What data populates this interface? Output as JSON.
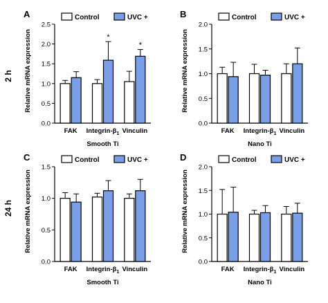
{
  "caption": "",
  "row_labels": [
    "2 h",
    "24 h"
  ],
  "chart_data": [
    {
      "panel": "A",
      "type": "bar",
      "categories": [
        "FAK",
        "Integrin-β1",
        "Vinculin"
      ],
      "category_display": [
        {
          "main": "FAK",
          "sub": ""
        },
        {
          "main": "Integrin-β",
          "sub": "1"
        },
        {
          "main": "Vinculin",
          "sub": ""
        }
      ],
      "xlabel": "Smooth Ti",
      "ylabel": "Relative mRNA expression",
      "ylim": [
        0,
        2.5
      ],
      "yticks": [
        "0.0",
        "0.5",
        "1.0",
        "1.5",
        "2.0",
        "2.5"
      ],
      "legend": "top",
      "series": [
        {
          "name": "Control",
          "color": "#ffffff",
          "values": [
            1.0,
            1.0,
            1.05
          ],
          "errors": [
            0.08,
            0.1,
            0.26
          ]
        },
        {
          "name": "UVC +",
          "color": "#7b9fe6",
          "values": [
            1.15,
            1.59,
            1.69
          ],
          "errors": [
            0.15,
            0.47,
            0.17
          ]
        }
      ],
      "annotations": [
        {
          "category": 1,
          "series": 1,
          "text": "*"
        },
        {
          "category": 2,
          "series": 1,
          "text": "*"
        }
      ]
    },
    {
      "panel": "B",
      "type": "bar",
      "categories": [
        "FAK",
        "Integrin-β1",
        "Vinculin"
      ],
      "category_display": [
        {
          "main": "FAK",
          "sub": ""
        },
        {
          "main": "Integrin-β",
          "sub": "1"
        },
        {
          "main": "Vinculin",
          "sub": ""
        }
      ],
      "xlabel": "Nano Ti",
      "ylabel": "Relative mRNA expression",
      "ylim": [
        0,
        2.0
      ],
      "yticks": [
        "0.0",
        "0.5",
        "1.0",
        "1.5",
        "2.0"
      ],
      "legend": "top",
      "series": [
        {
          "name": "Control",
          "color": "#ffffff",
          "values": [
            1.0,
            1.0,
            1.0
          ],
          "errors": [
            0.13,
            0.19,
            0.2
          ]
        },
        {
          "name": "UVC +",
          "color": "#7b9fe6",
          "values": [
            0.94,
            0.97,
            1.2
          ],
          "errors": [
            0.29,
            0.1,
            0.32
          ]
        }
      ],
      "annotations": []
    },
    {
      "panel": "C",
      "type": "bar",
      "categories": [
        "FAK",
        "Integrin-β1",
        "Vinculin"
      ],
      "category_display": [
        {
          "main": "FAK",
          "sub": ""
        },
        {
          "main": "Integrin-β",
          "sub": "1"
        },
        {
          "main": "Vinculin",
          "sub": ""
        }
      ],
      "xlabel": "Smooth Ti",
      "ylabel": "Relative mRNA expression",
      "ylim": [
        0,
        1.5
      ],
      "yticks": [
        "0.0",
        "0.5",
        "1.0",
        "1.5"
      ],
      "legend": "top",
      "series": [
        {
          "name": "Control",
          "color": "#ffffff",
          "values": [
            1.0,
            1.02,
            1.0
          ],
          "errors": [
            0.09,
            0.06,
            0.07
          ]
        },
        {
          "name": "UVC +",
          "color": "#7b9fe6",
          "values": [
            0.94,
            1.12,
            1.12
          ],
          "errors": [
            0.13,
            0.16,
            0.18
          ]
        }
      ],
      "annotations": []
    },
    {
      "panel": "D",
      "type": "bar",
      "categories": [
        "FAK",
        "Integrin-β1",
        "Vinculin"
      ],
      "category_display": [
        {
          "main": "FAK",
          "sub": ""
        },
        {
          "main": "Integrin-β",
          "sub": "1"
        },
        {
          "main": "Vinculin",
          "sub": ""
        }
      ],
      "xlabel": "Nano Ti",
      "ylabel": "Relative mRNA expression",
      "ylim": [
        0,
        2.0
      ],
      "yticks": [
        "0.0",
        "0.5",
        "1.0",
        "1.5",
        "2.0"
      ],
      "legend": "top",
      "series": [
        {
          "name": "Control",
          "color": "#ffffff",
          "values": [
            1.0,
            1.0,
            1.0
          ],
          "errors": [
            0.52,
            0.08,
            0.16
          ]
        },
        {
          "name": "UVC +",
          "color": "#7b9fe6",
          "values": [
            1.04,
            1.03,
            1.02
          ],
          "errors": [
            0.53,
            0.15,
            0.21
          ]
        }
      ],
      "annotations": []
    }
  ]
}
